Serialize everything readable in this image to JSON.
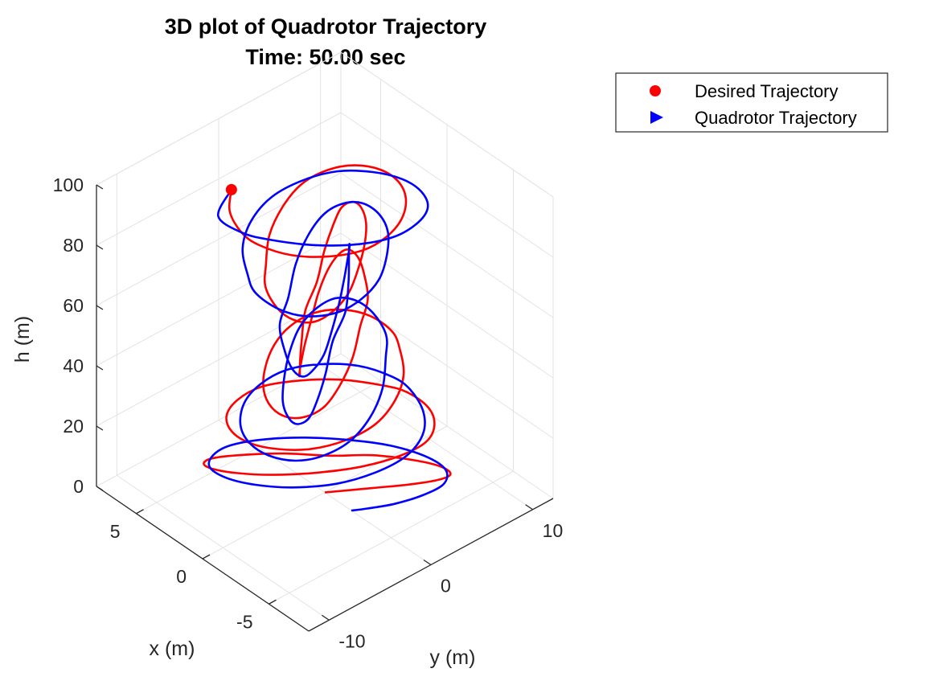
{
  "chart_data": {
    "type": "line",
    "projection": "3d",
    "title": "3D plot of Quadrotor Trajectory",
    "subtitle": "Time: 50.00 sec",
    "xlabel": "x (m)",
    "ylabel": "y (m)",
    "zlabel": "h (m)",
    "xlim": [
      -8,
      8
    ],
    "ylim": [
      -12,
      12
    ],
    "zlim": [
      0,
      100
    ],
    "x_ticks": [
      "5",
      "0",
      "-5"
    ],
    "y_ticks": [
      "10",
      "0",
      "-10"
    ],
    "z_ticks": [
      "100",
      "80",
      "60",
      "40",
      "20",
      "0"
    ],
    "grid": true,
    "legend_position": "top-right",
    "series": [
      {
        "name": "Desired Trajectory",
        "color": "#ff0000",
        "marker": "circle",
        "x": [
          0,
          -1.5,
          -2.8,
          -3.6,
          -3.8,
          -3.2,
          -2.1,
          -0.6,
          0.6,
          2.1,
          3.2,
          3.8,
          3.6,
          2.8,
          1.5,
          0,
          -1.5,
          -2.8,
          -3.6,
          -3.8,
          -3.2,
          -2.1,
          -0.6,
          0.6,
          2.1,
          3.2,
          3.8,
          3.6,
          2.8,
          1.5,
          0,
          -1.5,
          -2.8,
          -3.6,
          -3.8,
          -3.2,
          -2.1,
          -0.6,
          0.6,
          2.1,
          3.2,
          3.8,
          3.6,
          2.8,
          1.5,
          0,
          -1.5,
          -2.8,
          -3.6,
          -3.8,
          -3.2,
          -2.1,
          -0.6,
          0.6,
          2.1,
          3.2,
          3.8,
          3.6,
          2.8,
          1.5,
          0,
          -1.5,
          -2.8,
          -3.6,
          -3.8,
          -3.2,
          -2.1,
          -0.6,
          0.6,
          2.1,
          3.2,
          3.8,
          3.6,
          2.8,
          1.5,
          0,
          -1.5,
          -2.8,
          -3.6,
          -3.8,
          -3.2,
          -2.1,
          -0.6,
          0.6,
          2.1,
          3.2,
          3.8,
          3.6,
          2.8,
          1.5,
          0,
          -1.5,
          -2.8,
          -3.6,
          -3.8,
          -3.2,
          -2.1,
          -0.6,
          0.6,
          2.1,
          3.2
        ],
        "y": [
          0,
          2.7,
          5.0,
          6.6,
          7.4,
          7.2,
          6.0,
          3.9,
          1.3,
          -1.3,
          -3.9,
          -6.0,
          -7.2,
          -7.4,
          -6.6,
          -5.0,
          -2.7,
          0,
          2.7,
          5.0,
          6.6,
          7.4,
          7.2,
          6.0,
          3.9,
          1.3,
          -1.3,
          -3.9,
          -6.0,
          -7.2,
          -7.4,
          -6.6,
          -5.0,
          -2.7,
          0,
          2.7,
          5.0,
          6.6,
          7.4,
          7.2,
          6.0,
          3.9,
          1.3,
          -1.3,
          -3.9,
          -6.0,
          -7.2,
          -7.4,
          -6.6,
          -5.0,
          -2.7,
          0,
          2.7,
          5.0,
          6.6,
          7.4,
          7.2,
          6.0,
          3.9,
          1.3,
          -1.3,
          -3.9,
          -6.0,
          -7.2,
          -7.4,
          -6.6,
          -5.0,
          -2.7,
          0,
          2.7,
          5.0,
          6.6,
          7.4,
          7.2,
          6.0,
          3.9,
          1.3,
          -1.3,
          -3.9,
          -6.0,
          -7.2,
          -7.4,
          -6.6,
          -5.0,
          -2.7,
          0,
          2.7,
          5.0,
          6.6,
          7.4,
          7.2,
          6.0,
          3.9,
          1.3,
          -1.3,
          -3.9,
          -6.0,
          -7.2,
          -7.4,
          -6.6,
          -5.0
        ],
        "z": [
          0,
          1,
          2,
          3,
          4,
          5,
          6,
          7,
          8,
          9,
          10,
          11,
          12,
          13,
          14,
          15,
          16,
          17,
          18,
          19,
          20,
          21,
          22,
          23,
          24,
          25,
          26,
          27,
          28,
          29,
          30,
          31,
          32,
          33,
          34,
          35,
          36,
          37,
          38,
          39,
          40,
          41,
          42,
          43,
          44,
          45,
          46,
          47,
          48,
          49,
          50,
          51,
          52,
          53,
          54,
          55,
          56,
          57,
          58,
          59,
          60,
          61,
          62,
          63,
          64,
          65,
          66,
          67,
          68,
          69,
          70,
          71,
          72,
          73,
          74,
          75,
          76,
          77,
          78,
          79,
          80,
          81,
          82,
          83,
          84,
          85,
          86,
          87,
          88,
          89,
          90,
          91,
          92,
          93,
          94,
          95,
          96,
          97,
          98,
          99,
          100
        ]
      },
      {
        "name": "Quadrotor Trajectory",
        "color": "#0000ff",
        "marker": "triangle-right",
        "x": [
          -2.0,
          -2.6,
          -3.4,
          -4.0,
          -4.2,
          -3.6,
          -2.4,
          -0.8,
          0.6,
          2.2,
          3.4,
          4.0,
          3.8,
          3.0,
          1.6,
          0,
          -1.6,
          -3.0,
          -3.8,
          -4.0,
          -3.4,
          -2.2,
          -0.6,
          0.6,
          2.2,
          3.4,
          4.0,
          3.8,
          3.0,
          1.6,
          0,
          -1.6,
          -3.0,
          -3.8,
          -4.0,
          -3.4,
          -2.2,
          -0.6,
          0.6,
          2.2,
          3.4,
          4.0,
          3.8,
          3.0,
          1.6,
          0,
          -1.6,
          -3.0,
          -3.8,
          -4.0,
          -3.4,
          -2.2,
          -0.6,
          0.6,
          2.2,
          3.4,
          4.0,
          3.8,
          3.0,
          1.6,
          0,
          -1.6,
          -3.0,
          -3.8,
          -4.0,
          -3.4,
          -2.2,
          -0.6,
          0.6,
          2.2,
          3.4,
          4.0,
          3.8,
          3.0,
          1.6,
          0,
          -1.6,
          -3.0,
          -3.8,
          -4.0,
          -3.4,
          -2.2,
          -0.6,
          0.6,
          2.2,
          3.4,
          4.0,
          3.8,
          3.0,
          1.6,
          0,
          -1.6,
          -3.0,
          -3.8,
          -4.0,
          -3.4,
          -2.2,
          -0.6,
          0.6,
          2.2,
          3.2
        ],
        "y": [
          0,
          0.8,
          2.4,
          4.4,
          6.2,
          7.2,
          7.0,
          5.8,
          4.0,
          1.4,
          -1.4,
          -4.0,
          -6.0,
          -7.4,
          -7.6,
          -6.8,
          -5.2,
          -2.8,
          0,
          2.8,
          5.2,
          6.8,
          7.6,
          7.4,
          6.2,
          4.0,
          1.4,
          -1.4,
          -4.0,
          -6.2,
          -7.4,
          -7.6,
          -6.8,
          -5.2,
          -2.8,
          0,
          2.8,
          5.2,
          6.8,
          7.6,
          7.4,
          6.2,
          4.0,
          1.4,
          -1.4,
          -4.0,
          -6.2,
          -7.4,
          -7.6,
          -6.8,
          -5.2,
          -2.8,
          0,
          2.8,
          5.2,
          6.8,
          7.6,
          7.4,
          6.2,
          4.0,
          1.4,
          -1.4,
          -4.0,
          -6.2,
          -7.4,
          -7.6,
          -6.8,
          -5.2,
          -2.8,
          0,
          2.8,
          5.2,
          6.8,
          7.6,
          7.4,
          6.2,
          4.0,
          1.4,
          -1.4,
          -4.0,
          -6.2,
          -7.4,
          -7.6,
          -6.8,
          -5.2,
          -2.8,
          0,
          2.8,
          5.2,
          6.8,
          7.6,
          7.4,
          6.2,
          4.0,
          1.4,
          -1.4,
          -4.0,
          -6.2,
          -7.4,
          -7.6,
          -5.0
        ],
        "z": [
          0,
          1,
          2,
          3,
          4,
          5,
          6,
          7,
          8,
          9,
          10,
          11,
          12,
          13,
          14,
          15,
          16,
          17,
          18,
          19,
          20,
          21,
          22,
          23,
          24,
          25,
          26,
          27,
          28,
          29,
          30,
          31,
          32,
          33,
          34,
          35,
          36,
          37,
          38,
          39,
          40,
          41,
          42,
          43,
          44,
          45,
          46,
          47,
          48,
          49,
          50,
          51,
          52,
          53,
          54,
          55,
          56,
          57,
          58,
          59,
          60,
          61,
          62,
          63,
          64,
          65,
          66,
          67,
          68,
          69,
          70,
          71,
          72,
          73,
          74,
          75,
          76,
          77,
          78,
          79,
          80,
          81,
          82,
          83,
          84,
          85,
          86,
          87,
          88,
          89,
          90,
          91,
          92,
          93,
          94,
          95,
          96,
          97,
          98,
          99,
          100
        ]
      }
    ]
  }
}
